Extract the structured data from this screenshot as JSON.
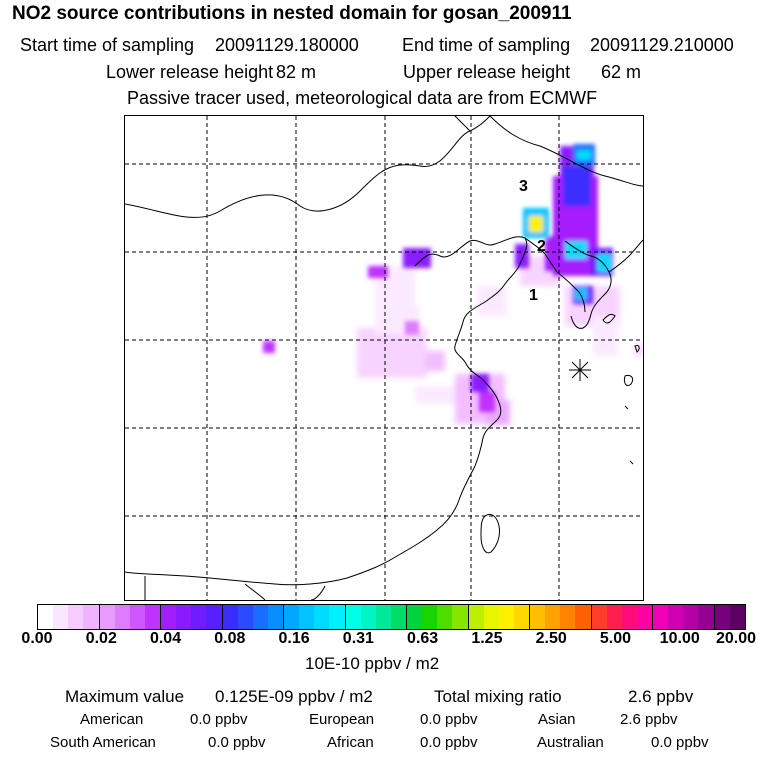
{
  "header": {
    "title": "NO2 source contributions in nested domain for gosan_200911",
    "start_label": "Start time of sampling",
    "start_value": "20091129.180000",
    "end_label": "End time of sampling",
    "end_value": "20091129.210000",
    "lower_label": "Lower release height",
    "lower_value": "82 m",
    "upper_label": "Upper release height",
    "upper_value": "62 m",
    "note": "Passive tracer used, meteorological data are from ECMWF"
  },
  "map": {
    "labels": [
      "3",
      "2",
      "1"
    ],
    "receptor_marker": "asterisk-icon"
  },
  "legend": {
    "ticks": [
      "0.00",
      "0.02",
      "0.04",
      "0.08",
      "0.16",
      "0.31",
      "0.63",
      "1.25",
      "2.50",
      "5.00",
      "10.00",
      "20.00"
    ],
    "unit": "10E-10 ppbv / m2",
    "colors": [
      "#ffffff",
      "#fbe6ff",
      "#f6ccff",
      "#f0b3ff",
      "#e89aff",
      "#dd7cff",
      "#cf55ff",
      "#bf33ff",
      "#a41dff",
      "#8a1bff",
      "#6f1cff",
      "#5820ff",
      "#3a2eff",
      "#2a4cff",
      "#1a6dff",
      "#0b8cff",
      "#00a8ff",
      "#00c4ff",
      "#00dcff",
      "#00f0ff",
      "#00ffea",
      "#00f5c5",
      "#00e89a",
      "#00dc6a",
      "#00d43c",
      "#19d400",
      "#4fdd00",
      "#86e600",
      "#bdf000",
      "#e6f500",
      "#fff000",
      "#ffd800",
      "#ffbf00",
      "#ffa200",
      "#ff8200",
      "#ff6000",
      "#ff3d2a",
      "#ff1f4f",
      "#ff0b7a",
      "#ff00a3",
      "#f000b6",
      "#d200b3",
      "#b400a6",
      "#960092",
      "#78007c",
      "#5c0063"
    ]
  },
  "summary": {
    "max_label": "Maximum value",
    "max_value": "0.125E-09 ppbv / m2",
    "total_label": "Total mixing ratio",
    "total_value": "2.6 ppbv",
    "regions": [
      {
        "name": "American",
        "value": "0.0 ppbv"
      },
      {
        "name": "European",
        "value": "0.0 ppbv"
      },
      {
        "name": "Asian",
        "value": "2.6 ppbv"
      },
      {
        "name": "South American",
        "value": "0.0 ppbv"
      },
      {
        "name": "African",
        "value": "0.0 ppbv"
      },
      {
        "name": "Australian",
        "value": "0.0 ppbv"
      }
    ]
  }
}
